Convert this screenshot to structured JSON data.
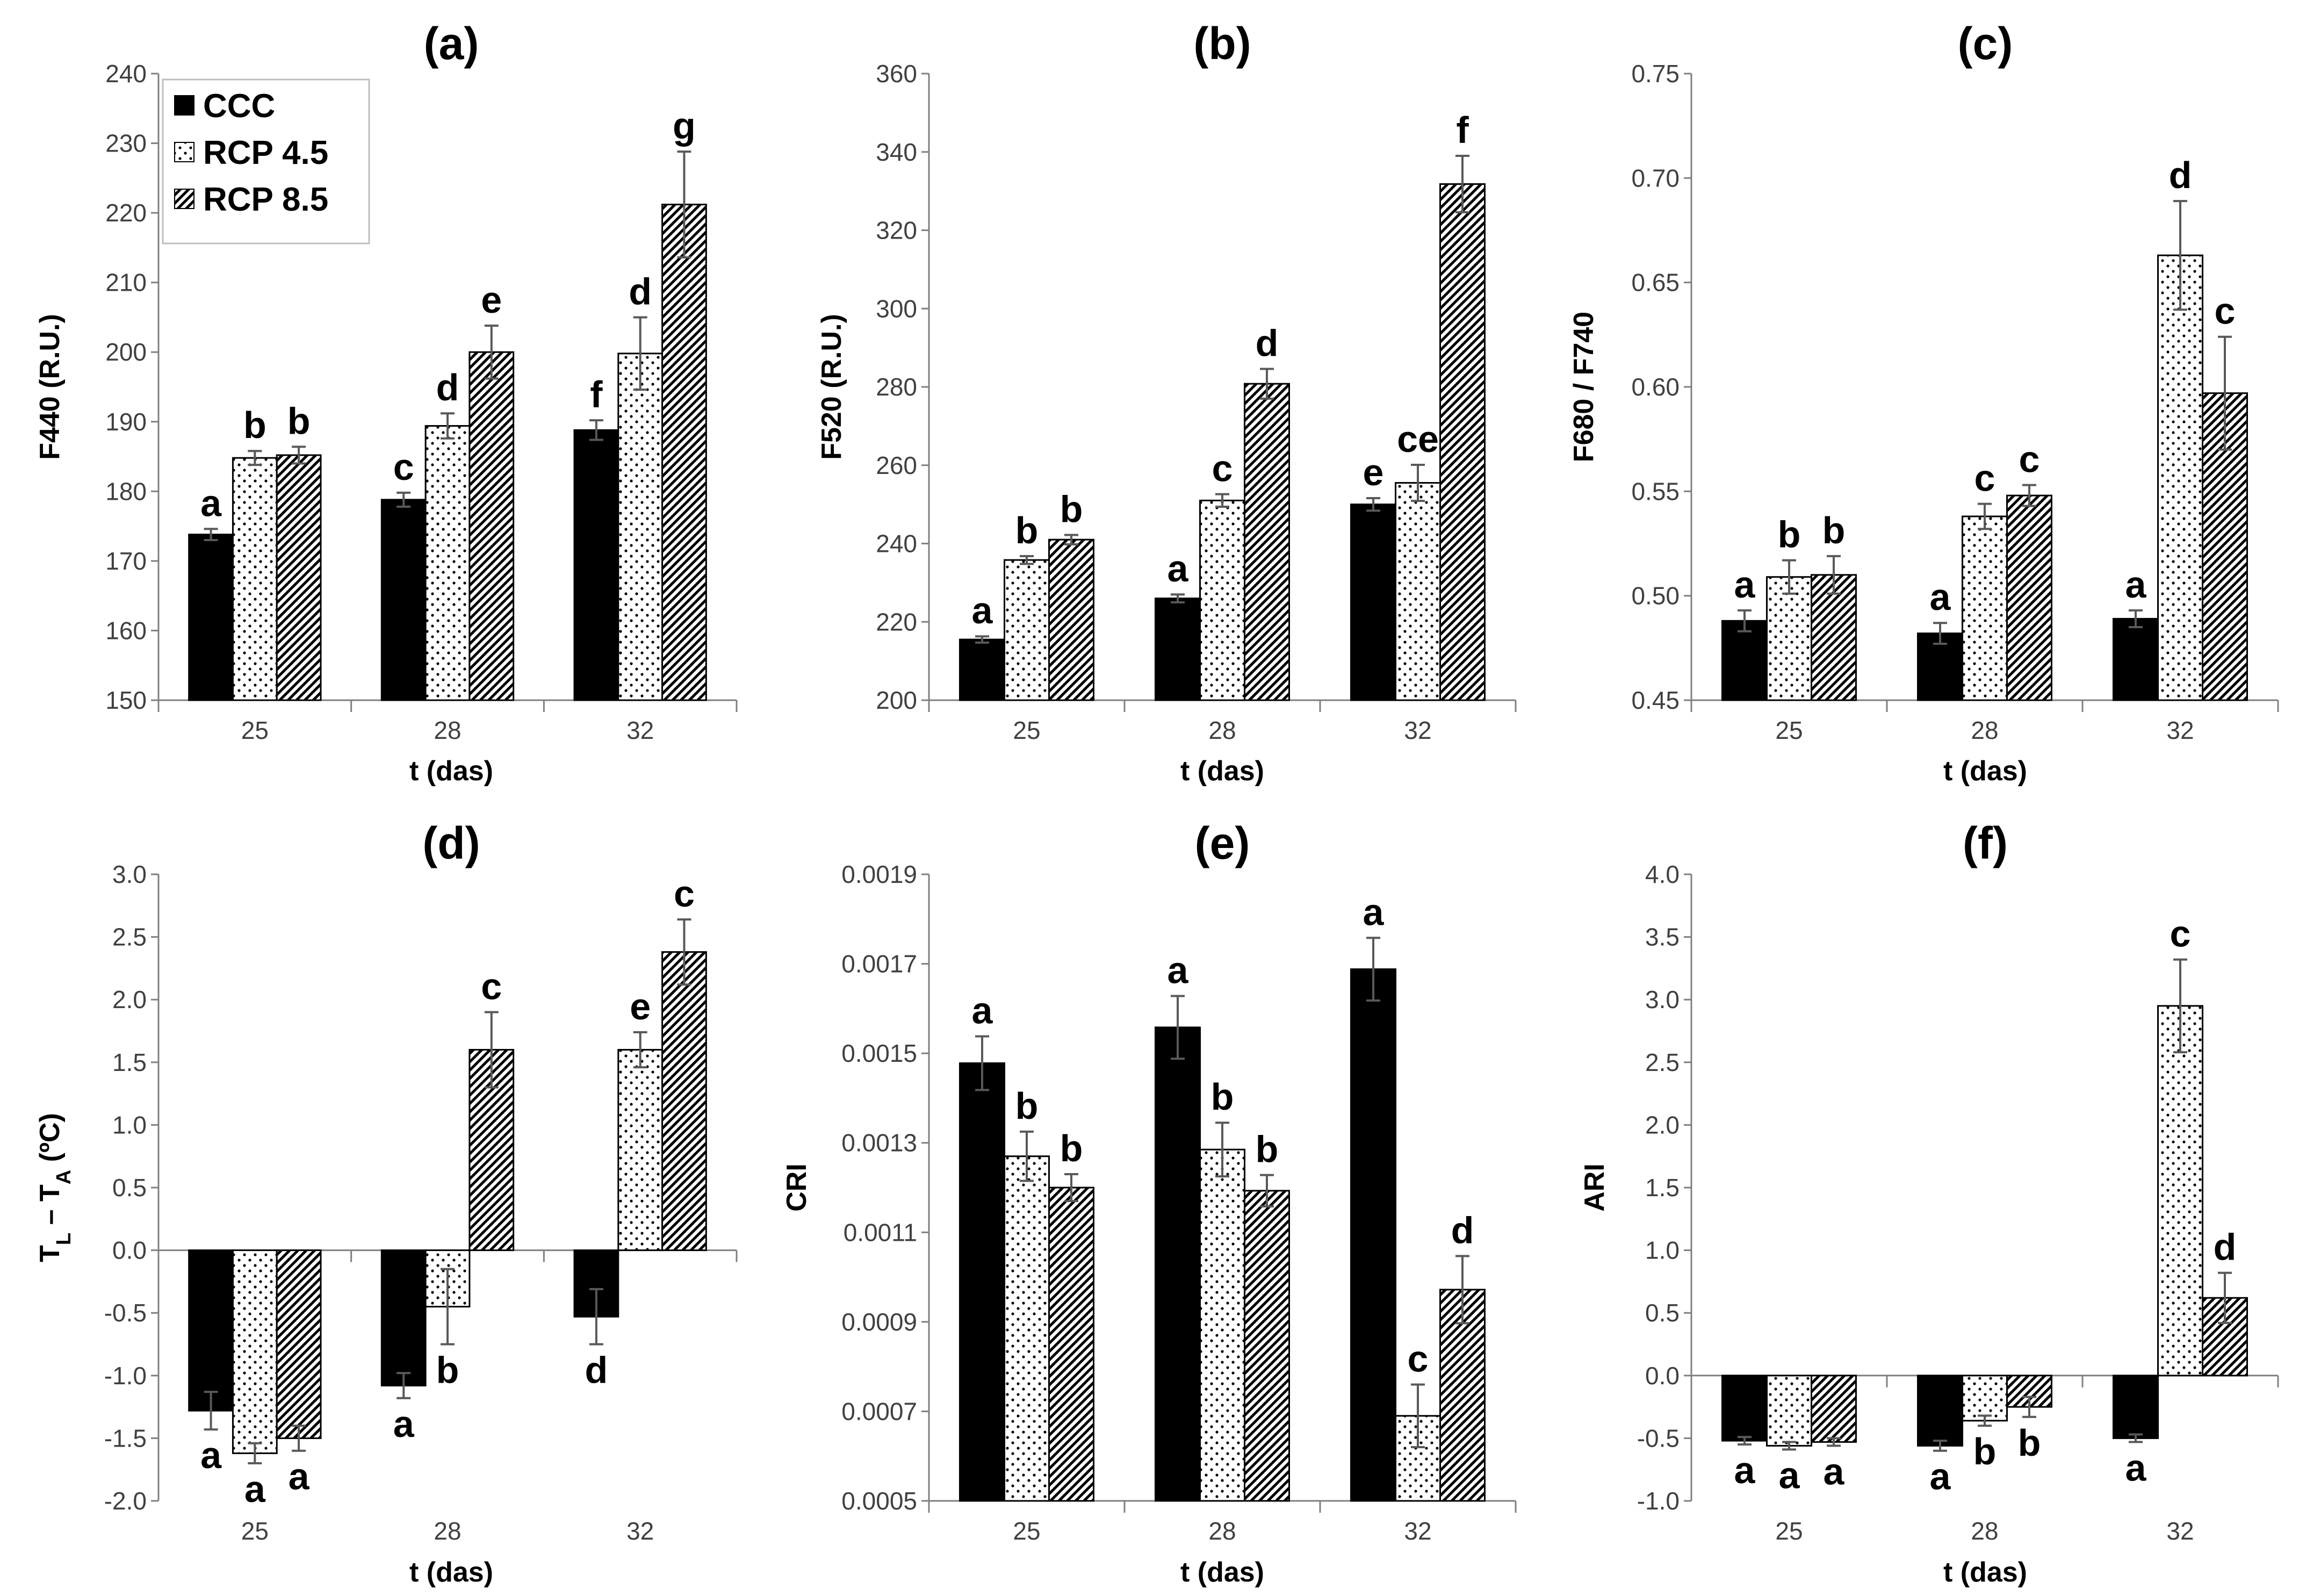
{
  "colors": {
    "ccc": "#000000",
    "axis": "#808080",
    "bar_stroke": "#000000",
    "error_bar": "#595959"
  },
  "legend": {
    "entries": [
      {
        "name": "CCC",
        "fill": "solid"
      },
      {
        "name": "RCP 4.5",
        "fill": "dots"
      },
      {
        "name": "RCP 8.5",
        "fill": "hatch"
      }
    ]
  },
  "chart_data": [
    {
      "type": "bar",
      "title": "(a)",
      "xlabel": "t (das)",
      "ylabel": "F440 (R.U.)",
      "ylim": [
        150,
        240
      ],
      "yticks": [
        "150",
        "160",
        "170",
        "180",
        "190",
        "200",
        "210",
        "220",
        "230",
        "240"
      ],
      "categories": [
        "25",
        "28",
        "32"
      ],
      "series": [
        {
          "name": "CCC",
          "values": [
            173.8,
            178.8,
            188.8
          ],
          "errors": [
            0.8,
            1.0,
            1.4
          ],
          "letters": [
            "a",
            "c",
            "f"
          ]
        },
        {
          "name": "RCP 4.5",
          "values": [
            184.8,
            189.4,
            199.8
          ],
          "errors": [
            1.0,
            1.8,
            5.2
          ],
          "letters": [
            "b",
            "d",
            "d"
          ]
        },
        {
          "name": "RCP 8.5",
          "values": [
            185.2,
            200.0,
            221.2
          ],
          "errors": [
            1.2,
            3.8,
            7.6
          ],
          "letters": [
            "b",
            "e",
            "g"
          ]
        }
      ]
    },
    {
      "type": "bar",
      "title": "(b)",
      "xlabel": "t (das)",
      "ylabel": "F520 (R.U.)",
      "ylim": [
        200,
        360
      ],
      "yticks": [
        "200",
        "220",
        "240",
        "260",
        "280",
        "300",
        "320",
        "340",
        "360"
      ],
      "categories": [
        "25",
        "28",
        "32"
      ],
      "series": [
        {
          "name": "CCC",
          "values": [
            215.5,
            226.0,
            250.0
          ],
          "errors": [
            0.8,
            1.0,
            1.6
          ],
          "letters": [
            "a",
            "a",
            "e"
          ]
        },
        {
          "name": "RCP 4.5",
          "values": [
            235.8,
            251.0,
            255.5
          ],
          "errors": [
            1.0,
            1.6,
            4.6
          ],
          "letters": [
            "b",
            "c",
            "ce"
          ]
        },
        {
          "name": "RCP 8.5",
          "values": [
            241.0,
            280.8,
            331.8
          ],
          "errors": [
            1.2,
            3.8,
            7.2
          ],
          "letters": [
            "b",
            "d",
            "f"
          ]
        }
      ]
    },
    {
      "type": "bar",
      "title": "(c)",
      "xlabel": "t (das)",
      "ylabel": "F680 / F740",
      "ylim": [
        0.45,
        0.75
      ],
      "yticks": [
        "0.45",
        "0.50",
        "0.55",
        "0.60",
        "0.65",
        "0.70",
        "0.75"
      ],
      "categories": [
        "25",
        "28",
        "32"
      ],
      "series": [
        {
          "name": "CCC",
          "values": [
            0.488,
            0.482,
            0.489
          ],
          "errors": [
            0.005,
            0.005,
            0.004
          ],
          "letters": [
            "a",
            "a",
            "a"
          ]
        },
        {
          "name": "RCP 4.5",
          "values": [
            0.509,
            0.538,
            0.663
          ],
          "errors": [
            0.008,
            0.006,
            0.026
          ],
          "letters": [
            "b",
            "c",
            "d"
          ]
        },
        {
          "name": "RCP 8.5",
          "values": [
            0.51,
            0.548,
            0.597
          ],
          "errors": [
            0.009,
            0.005,
            0.027
          ],
          "letters": [
            "b",
            "c",
            "c"
          ]
        }
      ]
    },
    {
      "type": "bar",
      "title": "(d)",
      "xlabel": "t (das)",
      "ylabel": "T",
      "ylabel_parts": {
        "t1": "T",
        "s1": "L",
        "mid": " – T",
        "s2": "A",
        "end": " (ºC)"
      },
      "ylim": [
        -2.0,
        3.0
      ],
      "yticks": [
        "-2.0",
        "-1.5",
        "-1.0",
        "-0.5",
        "0.0",
        "0.5",
        "1.0",
        "1.5",
        "2.0",
        "2.5",
        "3.0"
      ],
      "categories": [
        "25",
        "28",
        "32"
      ],
      "series": [
        {
          "name": "CCC",
          "values": [
            -1.28,
            -1.08,
            -0.53
          ],
          "errors": [
            0.15,
            0.1,
            0.22
          ],
          "letters": [
            "a",
            "a",
            "d"
          ]
        },
        {
          "name": "RCP 4.5",
          "values": [
            -1.62,
            -0.45,
            1.6
          ],
          "errors": [
            0.08,
            0.3,
            0.14
          ],
          "letters": [
            "a",
            "b",
            "e"
          ]
        },
        {
          "name": "RCP 8.5",
          "values": [
            -1.5,
            1.6,
            2.38
          ],
          "errors": [
            0.1,
            0.3,
            0.26
          ],
          "letters": [
            "a",
            "c",
            "c"
          ]
        }
      ]
    },
    {
      "type": "bar",
      "title": "(e)",
      "xlabel": "t (das)",
      "ylabel": "CRI",
      "ylim": [
        0.0005,
        0.0019
      ],
      "yticks": [
        "0.0005",
        "0.0007",
        "0.0009",
        "0.0011",
        "0.0013",
        "0.0015",
        "0.0017",
        "0.0019"
      ],
      "categories": [
        "25",
        "28",
        "32"
      ],
      "series": [
        {
          "name": "CCC",
          "values": [
            0.001478,
            0.001558,
            0.001688
          ],
          "errors": [
            6e-05,
            7e-05,
            7e-05
          ],
          "letters": [
            "a",
            "a",
            "a"
          ]
        },
        {
          "name": "RCP 4.5",
          "values": [
            0.00127,
            0.001285,
            0.00069
          ],
          "errors": [
            5.5e-05,
            6e-05,
            7e-05
          ],
          "letters": [
            "b",
            "b",
            "c"
          ]
        },
        {
          "name": "RCP 8.5",
          "values": [
            0.0012,
            0.001193,
            0.000972
          ],
          "errors": [
            3e-05,
            3.5e-05,
            7.5e-05
          ],
          "letters": [
            "b",
            "b",
            "d"
          ]
        }
      ]
    },
    {
      "type": "bar",
      "title": "(f)",
      "xlabel": "t (das)",
      "ylabel": "ARI",
      "ylim": [
        -1.0,
        4.0
      ],
      "yticks": [
        "-1.0",
        "-0.5",
        "0.0",
        "0.5",
        "1.0",
        "1.5",
        "2.0",
        "2.5",
        "3.0",
        "3.5",
        "4.0"
      ],
      "categories": [
        "25",
        "28",
        "32"
      ],
      "series": [
        {
          "name": "CCC",
          "values": [
            -0.52,
            -0.56,
            -0.5
          ],
          "errors": [
            0.03,
            0.04,
            0.03
          ],
          "letters": [
            "a",
            "a",
            "a"
          ]
        },
        {
          "name": "RCP 4.5",
          "values": [
            -0.56,
            -0.36,
            2.95
          ],
          "errors": [
            0.03,
            0.04,
            0.37
          ],
          "letters": [
            "a",
            "b",
            "c"
          ]
        },
        {
          "name": "RCP 8.5",
          "values": [
            -0.53,
            -0.25,
            0.62
          ],
          "errors": [
            0.03,
            0.08,
            0.2
          ],
          "letters": [
            "a",
            "b",
            "d"
          ]
        }
      ]
    }
  ]
}
